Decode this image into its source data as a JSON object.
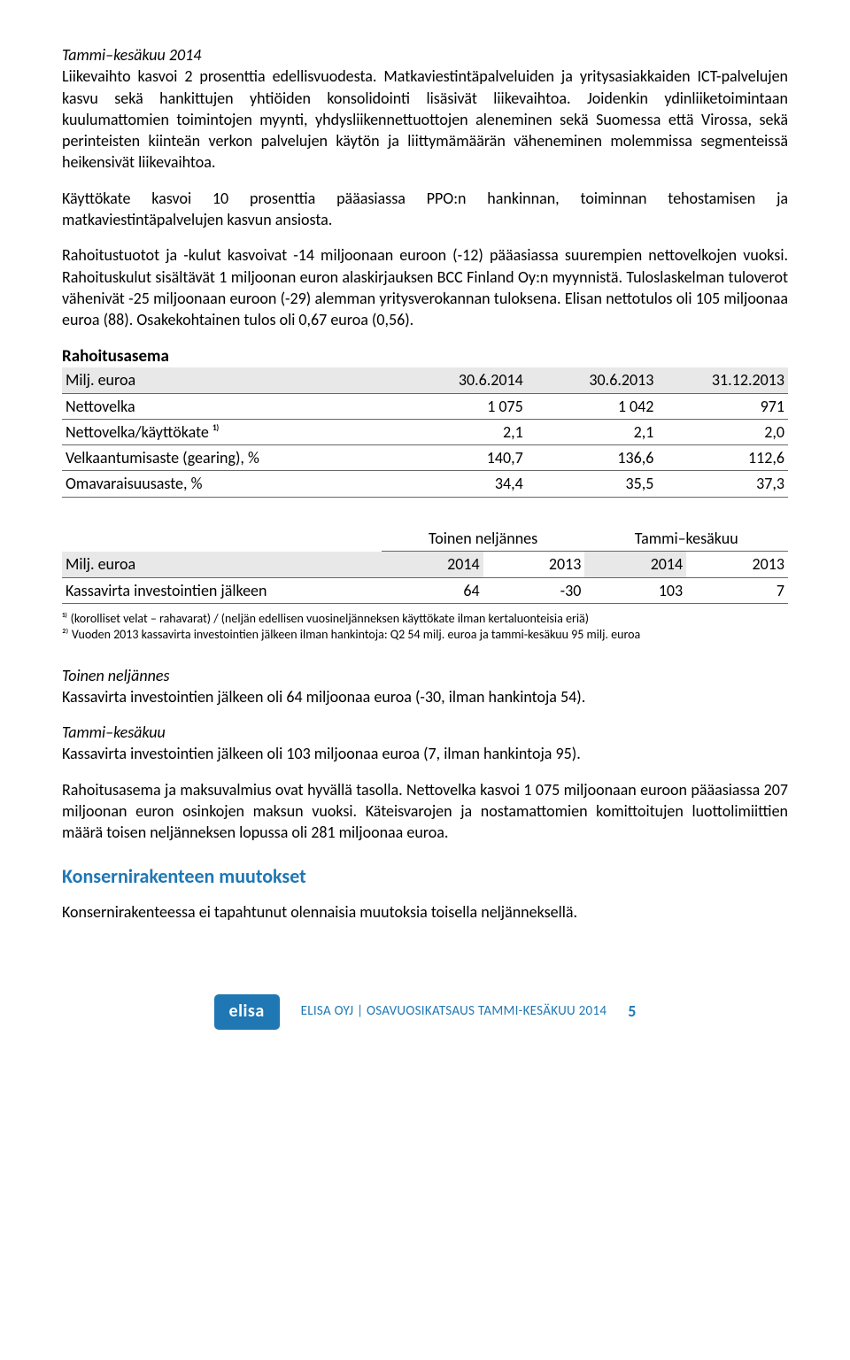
{
  "section1": {
    "heading": "Tammi–kesäkuu 2014",
    "p1": "Liikevaihto kasvoi 2 prosenttia edellisvuodesta. Matkaviestintäpalveluiden ja yritysasiakkaiden ICT-palvelujen kasvu sekä hankittujen yhtiöiden konsolidointi lisäsivät liikevaihtoa. Joidenkin ydinliiketoimintaan kuulumattomien toimintojen myynti, yhdysliikennettuottojen aleneminen sekä Suomessa että Virossa, sekä perinteisten kiinteän verkon palvelujen käytön ja liittymämäärän väheneminen molemmissa segmenteissä heikensivät liikevaihtoa.",
    "p2": "Käyttökate kasvoi 10 prosenttia pääasiassa PPO:n hankinnan, toiminnan tehostamisen ja matkaviestintäpalvelujen kasvun ansiosta.",
    "p3": "Rahoitustuotot ja -kulut kasvoivat -14 miljoonaan euroon (-12) pääasiassa suurempien nettovelkojen vuoksi. Rahoituskulut sisältävät 1 miljoonan euron alaskirjauksen BCC Finland Oy:n myynnistä. Tuloslaskelman tuloverot vähenivät -25 miljoonaan euroon (-29) alemman yritysverokannan tuloksena. Elisan nettotulos oli 105 miljoonaa euroa (88). Osakekohtainen tulos oli 0,67 euroa (0,56)."
  },
  "table1": {
    "title": "Rahoitusasema",
    "headers": [
      "Milj. euroa",
      "30.6.2014",
      "30.6.2013",
      "31.12.2013"
    ],
    "rows": [
      [
        "Nettovelka",
        "1 075",
        "1 042",
        "971"
      ],
      [
        "Nettovelka/käyttökate ¹⁾",
        "2,1",
        "2,1",
        "2,0"
      ],
      [
        "Velkaantumisaste (gearing), %",
        "140,7",
        "136,6",
        "112,6"
      ],
      [
        "Omavaraisuusaste, %",
        "34,4",
        "35,5",
        "37,3"
      ]
    ],
    "col_widths": [
      "46%",
      "18%",
      "18%",
      "18%"
    ]
  },
  "table2": {
    "super_headers": [
      "",
      "Toinen neljännes",
      "Tammi–kesäkuu"
    ],
    "headers": [
      "Milj. euroa",
      "2014",
      "2013",
      "2014",
      "2013"
    ],
    "rows": [
      [
        "Kassavirta investointien jälkeen",
        "64",
        "-30",
        "103",
        "7"
      ]
    ],
    "col_widths": [
      "44%",
      "14%",
      "14%",
      "14%",
      "14%"
    ],
    "footnote1": "¹⁾ (korolliset velat – rahavarat) / (neljän edellisen vuosineljänneksen käyttökate ilman kertaluonteisia eriä)",
    "footnote2": "²⁾ Vuoden 2013 kassavirta investointien jälkeen ilman hankintoja: Q2 54 milj. euroa ja tammi-kesäkuu 95 milj. euroa"
  },
  "section2": {
    "h1": "Toinen neljännes",
    "p1": "Kassavirta investointien jälkeen oli 64 miljoonaa euroa (-30, ilman hankintoja 54).",
    "h2": "Tammi–kesäkuu",
    "p2": "Kassavirta investointien jälkeen oli 103 miljoonaa euroa (7, ilman hankintoja 95).",
    "p3": "Rahoitusasema ja maksuvalmius ovat hyvällä tasolla. Nettovelka kasvoi 1 075 miljoonaan euroon pääasiassa 207 miljoonan euron osinkojen maksun vuoksi. Käteisvarojen ja nostamattomien komittoitujen luottolimiittien määrä toisen neljänneksen lopussa oli 281 miljoonaa euroa."
  },
  "section3": {
    "heading": "Konsernirakenteen muutokset",
    "p1": "Konsernirakenteessa ei tapahtunut olennaisia muutoksia toisella neljänneksellä."
  },
  "footer": {
    "logo": "elisa",
    "text": "ELISA OYJ | OSAVUOSIKATSAUS TAMMI-KESÄKUU 2014",
    "page": "5"
  },
  "colors": {
    "accent": "#1f77b4",
    "text": "#000000",
    "background": "#ffffff",
    "header_bg": "#e8e8e8",
    "border": "#666666"
  }
}
